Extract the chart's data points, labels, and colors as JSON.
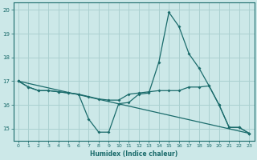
{
  "xlabel": "Humidex (Indice chaleur)",
  "background_color": "#cce8e8",
  "grid_color": "#aad0d0",
  "line_color": "#1a6b6b",
  "xlim": [
    -0.5,
    23.5
  ],
  "ylim": [
    14.5,
    20.3
  ],
  "yticks": [
    15,
    16,
    17,
    18,
    19,
    20
  ],
  "xticks": [
    0,
    1,
    2,
    3,
    4,
    5,
    6,
    7,
    8,
    9,
    10,
    11,
    12,
    13,
    14,
    15,
    16,
    17,
    18,
    19,
    20,
    21,
    22,
    23
  ],
  "line1_x": [
    0,
    1,
    2,
    3,
    4,
    5,
    6,
    7,
    8,
    9,
    10,
    11,
    12,
    13,
    14,
    15,
    16,
    17,
    18,
    19,
    20,
    21,
    22,
    23
  ],
  "line1_y": [
    17.0,
    16.75,
    16.6,
    16.6,
    16.55,
    16.5,
    16.45,
    15.4,
    14.85,
    14.85,
    16.05,
    16.1,
    16.45,
    16.5,
    17.8,
    19.9,
    19.3,
    18.15,
    17.55,
    16.8,
    16.0,
    15.05,
    15.05,
    14.8
  ],
  "line2_x": [
    0,
    1,
    2,
    3,
    4,
    5,
    6,
    7,
    8,
    9,
    10,
    11,
    12,
    13,
    14,
    15,
    16,
    17,
    18,
    19,
    20,
    21,
    22,
    23
  ],
  "line2_y": [
    17.0,
    16.75,
    16.6,
    16.6,
    16.55,
    16.5,
    16.45,
    16.35,
    16.25,
    16.2,
    16.2,
    16.45,
    16.5,
    16.55,
    16.6,
    16.6,
    16.6,
    16.75,
    16.75,
    16.8,
    16.0,
    15.05,
    15.05,
    14.8
  ],
  "line3_x": [
    0,
    23
  ],
  "line3_y": [
    17.0,
    14.8
  ]
}
